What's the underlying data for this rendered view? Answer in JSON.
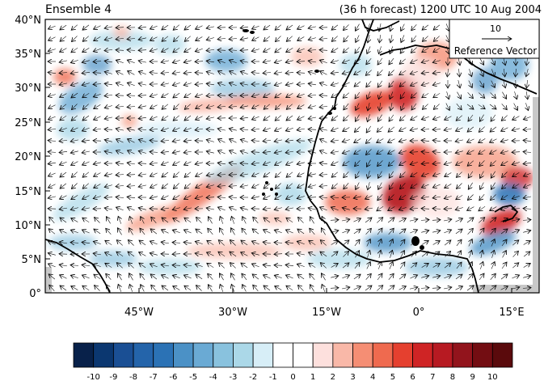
{
  "title_left": "Ensemble 4",
  "title_right": "(36 h forecast) 1200 UTC 10 Aug 2004",
  "reference_vector": {
    "magnitude": "10",
    "label": "Reference Vector"
  },
  "y_ticks": [
    "40°N",
    "35°N",
    "30°N",
    "25°N",
    "20°N",
    "15°N",
    "10°N",
    "5°N",
    "0°"
  ],
  "x_ticks": [
    "45°W",
    "30°W",
    "15°W",
    "0°",
    "15°E"
  ],
  "colorbar": {
    "labels": [
      "-10",
      "-9",
      "-8",
      "-7",
      "-6",
      "-5",
      "-4",
      "-3",
      "-2",
      "-1",
      "0",
      "1",
      "2",
      "3",
      "4",
      "5",
      "6",
      "7",
      "8",
      "9",
      "10"
    ],
    "colors": [
      "#08214a",
      "#0b3770",
      "#1a4f94",
      "#2464aa",
      "#2b72b5",
      "#4b91c6",
      "#6aaad4",
      "#89c2de",
      "#abd8e8",
      "#d7eef7",
      "#ffffff",
      "#ffffff",
      "#fde0dd",
      "#f9b8a8",
      "#f58e74",
      "#ef6a4f",
      "#e5402f",
      "#cf2425",
      "#b71a22",
      "#92141c",
      "#730d12",
      "#5a0a0c"
    ]
  },
  "colors": {
    "land_outline": "#000000",
    "missing_data": "#c8c8c8",
    "positive_accent": "#e5402f",
    "negative_accent": "#2b72b5"
  }
}
